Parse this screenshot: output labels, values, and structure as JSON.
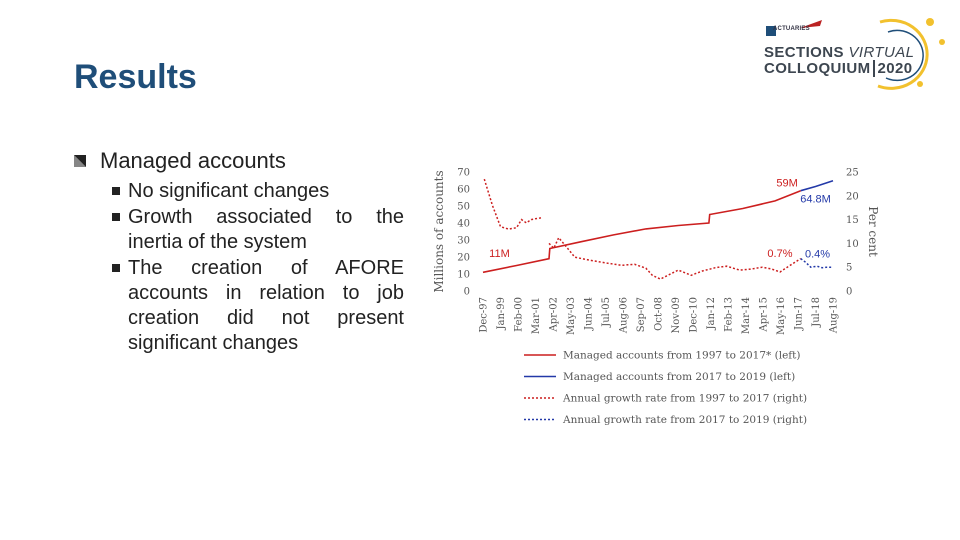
{
  "slide": {
    "title": "Results"
  },
  "logo": {
    "small": "ACTUARIES",
    "line1_bold": "SECTIONS",
    "line1_italic": "VIRTUAL",
    "line2": "COLLOQUIUM",
    "year": "2020",
    "colors": {
      "ring": "#f2c12e",
      "ring_blue": "#1f4e79",
      "text": "#3d4650"
    }
  },
  "bullets": {
    "main": "Managed accounts",
    "sub": [
      "No significant changes",
      "Growth associated to the inertia of the system",
      "The creation of AFORE accounts in relation to job creation did not present significant changes"
    ]
  },
  "chart_data": {
    "type": "line",
    "ylabel_left": "Millions of accounts",
    "ylabel_right": "Per cent",
    "ylim_left": [
      0,
      70
    ],
    "ylim_right": [
      0,
      25
    ],
    "yticks_left": [
      0,
      10,
      20,
      30,
      40,
      50,
      60,
      70
    ],
    "yticks_right": [
      0,
      5,
      10,
      15,
      20,
      25
    ],
    "x_range": [
      1997.917,
      2019.583
    ],
    "xticks": [
      {
        "label": "Dec-97",
        "x": 1997.917
      },
      {
        "label": "Jan-99",
        "x": 1999.0
      },
      {
        "label": "Feb-00",
        "x": 2000.083
      },
      {
        "label": "Mar-01",
        "x": 2001.167
      },
      {
        "label": "Apr-02",
        "x": 2002.25
      },
      {
        "label": "May-03",
        "x": 2003.333
      },
      {
        "label": "Jun-04",
        "x": 2004.417
      },
      {
        "label": "Jul-05",
        "x": 2005.5
      },
      {
        "label": "Aug-06",
        "x": 2006.583
      },
      {
        "label": "Sep-07",
        "x": 2007.667
      },
      {
        "label": "Oct-08",
        "x": 2008.75
      },
      {
        "label": "Nov-09",
        "x": 2009.833
      },
      {
        "label": "Dec-10",
        "x": 2010.917
      },
      {
        "label": "Jan-12",
        "x": 2012.0
      },
      {
        "label": "Feb-13",
        "x": 2013.083
      },
      {
        "label": "Mar-14",
        "x": 2014.167
      },
      {
        "label": "Apr-15",
        "x": 2015.25
      },
      {
        "label": "May-16",
        "x": 2016.333
      },
      {
        "label": "Jun-17",
        "x": 2017.417
      },
      {
        "label": "Jul-18",
        "x": 2018.5
      },
      {
        "label": "Aug-19",
        "x": 2019.583
      }
    ],
    "series": [
      {
        "name": "Managed accounts from 1997 to 2017* (left)",
        "axis": "left",
        "color": "#cc1f1f",
        "dash": "",
        "points": [
          [
            1997.917,
            11
          ],
          [
            2000,
            15
          ],
          [
            2002.0,
            19
          ],
          [
            2002.05,
            25
          ],
          [
            2004,
            29
          ],
          [
            2006,
            33
          ],
          [
            2008,
            36.5
          ],
          [
            2010,
            38.5
          ],
          [
            2011.9,
            40
          ],
          [
            2011.95,
            45
          ],
          [
            2014,
            48.5
          ],
          [
            2016,
            53
          ],
          [
            2017.583,
            59
          ]
        ]
      },
      {
        "name": "Managed accounts from 2017 to 2019 (left)",
        "axis": "left",
        "color": "#2339a8",
        "dash": "",
        "points": [
          [
            2017.583,
            59
          ],
          [
            2018.5,
            61.5
          ],
          [
            2019.583,
            64.8
          ]
        ]
      },
      {
        "name": "Annual growth rate from 1997 to 2017 (right)",
        "axis": "right",
        "color": "#cc1f1f",
        "dash": "2 2",
        "points": [
          [
            1998.0,
            23.5
          ],
          [
            1998.5,
            18
          ],
          [
            1999,
            13.5
          ],
          [
            1999.5,
            13
          ],
          [
            2000,
            13.3
          ],
          [
            2000.3,
            15
          ],
          [
            2000.6,
            14.3
          ],
          [
            2000.9,
            15
          ],
          [
            2001.2,
            15.2
          ],
          [
            2001.6,
            15.4
          ]
        ]
      },
      {
        "name": "Annual growth rate from 1997 to 2017 (right) - later",
        "axis": "right",
        "color": "#cc1f1f",
        "dash": "2 2",
        "points": [
          [
            2002.0,
            10.0
          ],
          [
            2002.3,
            9.0
          ],
          [
            2002.6,
            11.2
          ],
          [
            2003.0,
            9.6
          ],
          [
            2003.6,
            7.1
          ],
          [
            2004.5,
            6.5
          ],
          [
            2005.5,
            5.9
          ],
          [
            2006.5,
            5.4
          ],
          [
            2007.3,
            5.6
          ],
          [
            2008.0,
            4.8
          ],
          [
            2008.4,
            3.3
          ],
          [
            2008.9,
            2.5
          ],
          [
            2009.3,
            3.2
          ],
          [
            2010.0,
            4.4
          ],
          [
            2010.8,
            3.3
          ],
          [
            2011.5,
            4.2
          ],
          [
            2012.3,
            4.9
          ],
          [
            2013.0,
            5.2
          ],
          [
            2013.8,
            4.4
          ],
          [
            2014.5,
            4.6
          ],
          [
            2015.2,
            5.0
          ],
          [
            2015.8,
            4.6
          ],
          [
            2016.3,
            4.0
          ],
          [
            2016.8,
            5.1
          ],
          [
            2017.583,
            6.8
          ]
        ]
      },
      {
        "name": "Annual growth rate from 2017 to 2019 (right)",
        "axis": "right",
        "color": "#2339a8",
        "dash": "2 2",
        "points": [
          [
            2017.583,
            6.8
          ],
          [
            2017.9,
            6.0
          ],
          [
            2018.2,
            5.0
          ],
          [
            2018.6,
            5.2
          ],
          [
            2018.9,
            4.9
          ],
          [
            2019.2,
            5.0
          ],
          [
            2019.583,
            5.0
          ]
        ]
      }
    ],
    "legend": [
      {
        "label": "Managed accounts from 1997 to 2017* (left)",
        "color": "#cc1f1f",
        "dash": ""
      },
      {
        "label": "Managed accounts from 2017 to 2019 (left)",
        "color": "#2339a8",
        "dash": ""
      },
      {
        "label": "Annual growth rate from 1997 to 2017 (right)",
        "color": "#cc1f1f",
        "dash": "2 2"
      },
      {
        "label": "Annual growth rate from 2017 to 2019 (right)",
        "color": "#2339a8",
        "dash": "2 2"
      }
    ],
    "annotations": [
      {
        "text": "59M",
        "color": "#cc1f1f",
        "x": 2017.4,
        "y": 61.5,
        "axis": "left",
        "anchor": "end"
      },
      {
        "text": "64.8M",
        "color": "#2339a8",
        "x": 2018.5,
        "y": 52,
        "axis": "left",
        "anchor": "middle"
      },
      {
        "text": "11M",
        "color": "#cc1f1f",
        "x": 1998.3,
        "y": 20,
        "axis": "left",
        "anchor": "start"
      },
      {
        "text": "0.7%",
        "color": "#cc1f1f",
        "x": 2016.3,
        "y": 20,
        "axis": "left",
        "anchor": "middle"
      },
      {
        "text": "0.4%",
        "color": "#2339a8",
        "x": 2019.4,
        "y": 19.8,
        "axis": "left",
        "anchor": "end"
      }
    ]
  }
}
